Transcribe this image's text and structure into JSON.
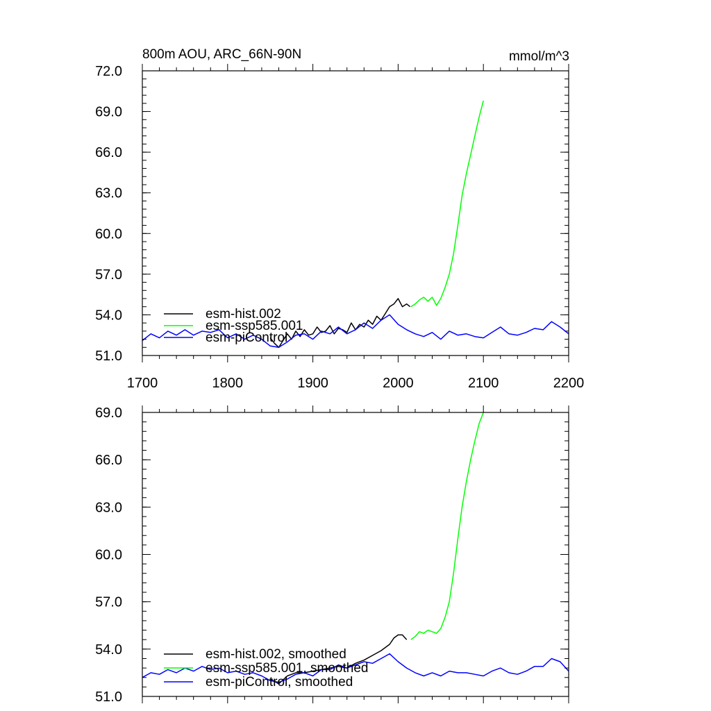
{
  "colors": {
    "hist": "#000000",
    "ssp": "#00ff00",
    "control": "#0000ff"
  },
  "chart_data": [
    {
      "type": "line",
      "panel": "top",
      "title": "800m AOU, ARC_66N-90N",
      "units": "mmol/m^3",
      "xlim": [
        1700,
        2200
      ],
      "ylim": [
        51.0,
        72.0
      ],
      "xticks": [
        1700,
        1800,
        1900,
        2000,
        2100,
        2200
      ],
      "xtick_labels": [
        "1700",
        "1800",
        "1900",
        "2000",
        "2100",
        "2200"
      ],
      "yticks": [
        51.0,
        54.0,
        57.0,
        60.0,
        63.0,
        66.0,
        69.0,
        72.0
      ],
      "ytick_labels": [
        "51.0",
        "54.0",
        "57.0",
        "60.0",
        "63.0",
        "66.0",
        "69.0",
        "72.0"
      ],
      "legend_position": "lower-left",
      "series": [
        {
          "name": "esm-hist.002",
          "color_key": "hist",
          "x": [
            1850,
            1855,
            1860,
            1865,
            1870,
            1875,
            1880,
            1885,
            1890,
            1895,
            1900,
            1905,
            1910,
            1915,
            1920,
            1925,
            1930,
            1935,
            1940,
            1945,
            1950,
            1955,
            1960,
            1965,
            1970,
            1975,
            1980,
            1985,
            1990,
            1995,
            2000,
            2005,
            2010,
            2014
          ],
          "y": [
            52.3,
            51.9,
            51.6,
            52.1,
            52.6,
            52.2,
            52.8,
            52.4,
            52.9,
            52.5,
            52.6,
            53.1,
            52.7,
            52.8,
            53.2,
            52.6,
            53.0,
            52.9,
            52.7,
            53.4,
            52.9,
            53.3,
            53.1,
            53.6,
            53.3,
            53.9,
            53.6,
            54.1,
            54.6,
            54.8,
            55.2,
            54.6,
            54.8,
            54.6
          ]
        },
        {
          "name": "esm-ssp585.001",
          "color_key": "ssp",
          "x": [
            2015,
            2020,
            2025,
            2030,
            2035,
            2040,
            2045,
            2050,
            2055,
            2060,
            2065,
            2070,
            2075,
            2080,
            2085,
            2090,
            2095,
            2100
          ],
          "y": [
            54.6,
            54.8,
            55.1,
            55.3,
            55.0,
            55.3,
            54.7,
            55.2,
            56.0,
            57.0,
            58.5,
            60.6,
            62.8,
            64.4,
            65.8,
            67.2,
            68.6,
            69.8
          ]
        },
        {
          "name": "esm-piControl",
          "color_key": "control",
          "x": [
            1700,
            1710,
            1720,
            1730,
            1740,
            1750,
            1760,
            1770,
            1780,
            1790,
            1800,
            1810,
            1820,
            1830,
            1840,
            1850,
            1860,
            1870,
            1880,
            1890,
            1900,
            1910,
            1920,
            1930,
            1940,
            1950,
            1960,
            1970,
            1980,
            1990,
            2000,
            2010,
            2020,
            2030,
            2040,
            2050,
            2060,
            2070,
            2080,
            2090,
            2100,
            2110,
            2120,
            2130,
            2140,
            2150,
            2160,
            2170,
            2180,
            2190,
            2200
          ],
          "y": [
            52.1,
            52.6,
            52.3,
            52.8,
            52.5,
            52.9,
            52.5,
            52.8,
            52.7,
            52.9,
            52.3,
            52.6,
            52.2,
            52.5,
            52.2,
            51.7,
            51.6,
            52.0,
            52.5,
            52.6,
            52.2,
            52.8,
            52.6,
            53.1,
            52.6,
            52.9,
            53.4,
            53.0,
            53.6,
            54.0,
            53.3,
            52.9,
            52.6,
            52.4,
            52.7,
            52.2,
            52.8,
            52.5,
            52.6,
            52.4,
            52.3,
            52.7,
            53.1,
            52.6,
            52.5,
            52.7,
            53.0,
            52.9,
            53.5,
            53.1,
            52.6
          ]
        }
      ]
    },
    {
      "type": "line",
      "panel": "bottom",
      "xlim": [
        1700,
        2200
      ],
      "ylim": [
        51.0,
        69.0
      ],
      "yticks": [
        51.0,
        54.0,
        57.0,
        60.0,
        63.0,
        66.0,
        69.0
      ],
      "ytick_labels": [
        "51.0",
        "54.0",
        "57.0",
        "60.0",
        "63.0",
        "66.0",
        "69.0"
      ],
      "legend_position": "lower-left",
      "series": [
        {
          "name": "esm-hist.002, smoothed",
          "color_key": "hist",
          "x": [
            1850,
            1860,
            1870,
            1880,
            1890,
            1900,
            1910,
            1920,
            1930,
            1940,
            1950,
            1960,
            1970,
            1980,
            1990,
            1995,
            2000,
            2005,
            2010
          ],
          "y": [
            52.1,
            51.8,
            52.3,
            52.5,
            52.5,
            52.6,
            52.7,
            52.8,
            52.9,
            52.8,
            53.1,
            53.3,
            53.6,
            53.9,
            54.3,
            54.7,
            54.9,
            54.9,
            54.6
          ]
        },
        {
          "name": "esm-ssp585.001, smoothed",
          "color_key": "ssp",
          "x": [
            2015,
            2020,
            2025,
            2030,
            2035,
            2040,
            2045,
            2050,
            2055,
            2060,
            2065,
            2070,
            2075,
            2080,
            2085,
            2090,
            2095,
            2100
          ],
          "y": [
            54.6,
            54.8,
            55.1,
            55.0,
            55.2,
            55.1,
            55.0,
            55.3,
            56.0,
            57.0,
            58.8,
            61.0,
            63.0,
            64.6,
            66.0,
            67.2,
            68.3,
            69.0
          ]
        },
        {
          "name": "esm-piControl, smoothed",
          "color_key": "control",
          "x": [
            1700,
            1710,
            1720,
            1730,
            1740,
            1750,
            1760,
            1770,
            1780,
            1790,
            1800,
            1810,
            1820,
            1830,
            1840,
            1850,
            1860,
            1870,
            1880,
            1890,
            1900,
            1910,
            1920,
            1930,
            1940,
            1950,
            1960,
            1970,
            1980,
            1990,
            2000,
            2010,
            2020,
            2030,
            2040,
            2050,
            2060,
            2070,
            2080,
            2090,
            2100,
            2110,
            2120,
            2130,
            2140,
            2150,
            2160,
            2170,
            2180,
            2190,
            2200
          ],
          "y": [
            52.2,
            52.5,
            52.4,
            52.7,
            52.5,
            52.8,
            52.6,
            52.9,
            52.7,
            52.8,
            52.5,
            52.6,
            52.4,
            52.5,
            52.3,
            52.0,
            51.9,
            52.1,
            52.4,
            52.5,
            52.3,
            52.7,
            52.7,
            53.0,
            52.8,
            53.0,
            53.2,
            53.1,
            53.4,
            53.7,
            53.2,
            52.8,
            52.5,
            52.3,
            52.5,
            52.3,
            52.6,
            52.5,
            52.5,
            52.4,
            52.3,
            52.6,
            52.8,
            52.5,
            52.4,
            52.6,
            52.9,
            52.9,
            53.4,
            53.2,
            52.6
          ]
        }
      ]
    }
  ]
}
